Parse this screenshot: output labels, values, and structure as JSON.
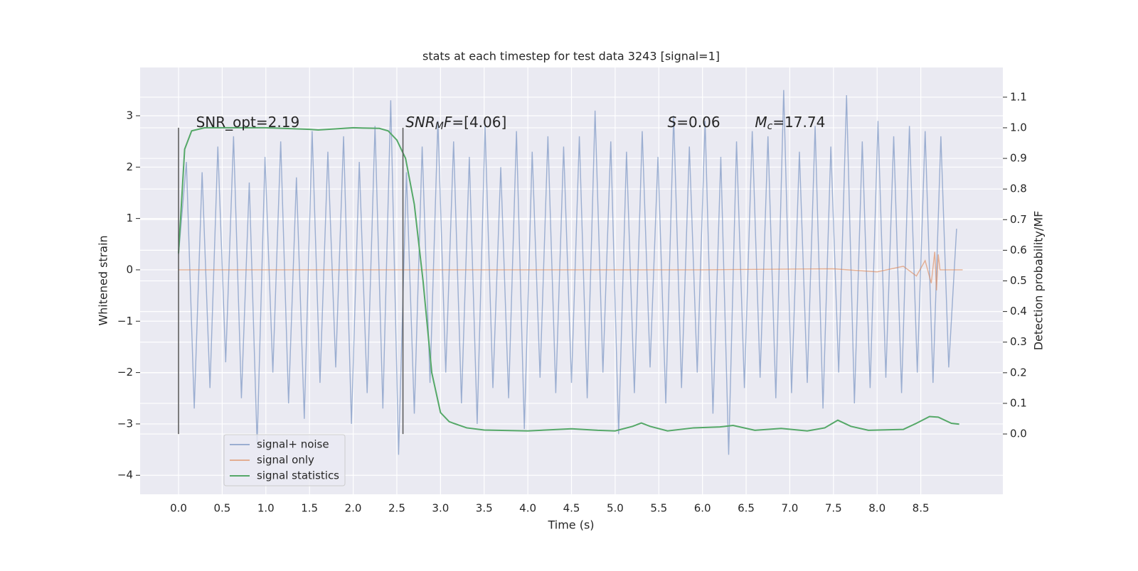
{
  "chart_data": {
    "type": "line",
    "title": "stats at each timestep for test data 3243 [signal=1]",
    "xlabel": "Time (s)",
    "ylabel": "Whitened strain",
    "y2label": "Detection probability/MF",
    "xlim": [
      -0.44,
      9.44
    ],
    "ylim": [
      -4.37,
      3.94
    ],
    "y2lim": [
      -0.197,
      1.197
    ],
    "grid": true,
    "legend": "lower left",
    "xticks": [
      {
        "value": 0,
        "label": "0.0"
      },
      {
        "value": 0.5,
        "label": "0.5"
      },
      {
        "value": 1,
        "label": "1.0"
      },
      {
        "value": 1.5,
        "label": "1.5"
      },
      {
        "value": 2,
        "label": "2.0"
      },
      {
        "value": 2.5,
        "label": "2.5"
      },
      {
        "value": 3,
        "label": "3.0"
      },
      {
        "value": 3.5,
        "label": "3.5"
      },
      {
        "value": 4,
        "label": "4.0"
      },
      {
        "value": 4.5,
        "label": "4.5"
      },
      {
        "value": 5,
        "label": "5.0"
      },
      {
        "value": 5.5,
        "label": "5.5"
      },
      {
        "value": 6,
        "label": "6.0"
      },
      {
        "value": 6.5,
        "label": "6.5"
      },
      {
        "value": 7,
        "label": "7.0"
      },
      {
        "value": 7.5,
        "label": "7.5"
      },
      {
        "value": 8,
        "label": "8.0"
      },
      {
        "value": 8.5,
        "label": "8.5"
      }
    ],
    "yticks": [
      {
        "value": -4,
        "label": "−4"
      },
      {
        "value": -3,
        "label": "−3"
      },
      {
        "value": -2,
        "label": "−2"
      },
      {
        "value": -1,
        "label": "−1"
      },
      0,
      1,
      2,
      3
    ],
    "y2ticks": [
      {
        "value": 0,
        "label": "0.0"
      },
      {
        "value": 0.1,
        "label": "0.1"
      },
      {
        "value": 0.2,
        "label": "0.2"
      },
      {
        "value": 0.3,
        "label": "0.3"
      },
      {
        "value": 0.4,
        "label": "0.4"
      },
      {
        "value": 0.5,
        "label": "0.5"
      },
      {
        "value": 0.6,
        "label": "0.6"
      },
      {
        "value": 0.7,
        "label": "0.7"
      },
      {
        "value": 0.8,
        "label": "0.8"
      },
      {
        "value": 0.9,
        "label": "0.9"
      },
      {
        "value": 1,
        "label": "1.0"
      },
      {
        "value": 1.1,
        "label": "1.1"
      }
    ],
    "series": [
      {
        "name": "signal+ noise",
        "color": "#4c72b0",
        "opacity": 0.5,
        "x": [
          0,
          0.09,
          0.18,
          0.27,
          0.36,
          0.45,
          0.54,
          0.63,
          0.72,
          0.81,
          0.9,
          0.99,
          1.08,
          1.17,
          1.26,
          1.35,
          1.44,
          1.53,
          1.62,
          1.71,
          1.8,
          1.89,
          1.98,
          2.07,
          2.16,
          2.25,
          2.34,
          2.43,
          2.52,
          2.61,
          2.7,
          2.79,
          2.88,
          2.97,
          3.06,
          3.15,
          3.24,
          3.33,
          3.42,
          3.51,
          3.6,
          3.69,
          3.78,
          3.87,
          3.96,
          4.05,
          4.14,
          4.23,
          4.32,
          4.41,
          4.5,
          4.59,
          4.68,
          4.77,
          4.86,
          4.95,
          5.04,
          5.13,
          5.22,
          5.31,
          5.4,
          5.49,
          5.58,
          5.67,
          5.76,
          5.85,
          5.94,
          6.03,
          6.12,
          6.21,
          6.3,
          6.39,
          6.48,
          6.57,
          6.66,
          6.75,
          6.84,
          6.93,
          7.02,
          7.11,
          7.2,
          7.29,
          7.38,
          7.47,
          7.56,
          7.65,
          7.74,
          7.83,
          7.92,
          8.01,
          8.1,
          8.19,
          8.28,
          8.37,
          8.46,
          8.55,
          8.64,
          8.73,
          8.82,
          8.91
        ],
        "values": [
          0.3,
          2.1,
          -2.7,
          1.9,
          -2.3,
          2.4,
          -1.8,
          2.6,
          -2.5,
          1.7,
          -3.4,
          2.2,
          -2.0,
          2.5,
          -2.6,
          1.8,
          -2.9,
          2.7,
          -2.2,
          2.3,
          -1.9,
          2.6,
          -3.0,
          2.1,
          -2.4,
          2.8,
          -2.7,
          3.3,
          -3.6,
          1.9,
          -2.8,
          2.4,
          -2.2,
          2.9,
          -2.0,
          2.5,
          -2.6,
          2.2,
          -3.0,
          2.8,
          -2.3,
          2.0,
          -2.5,
          2.7,
          -3.1,
          2.3,
          -2.1,
          2.6,
          -2.4,
          2.4,
          -2.2,
          2.6,
          -2.5,
          3.1,
          -2.0,
          2.5,
          -3.2,
          2.3,
          -2.4,
          2.7,
          -1.9,
          2.2,
          -2.6,
          3.0,
          -2.3,
          2.4,
          -2.0,
          2.9,
          -2.8,
          2.2,
          -3.6,
          2.5,
          -2.3,
          2.7,
          -2.1,
          2.6,
          -2.5,
          3.5,
          -2.4,
          2.3,
          -2.2,
          2.8,
          -2.7,
          2.4,
          -2.0,
          3.4,
          -2.6,
          2.5,
          -2.3,
          2.9,
          -2.1,
          2.6,
          -2.4,
          2.8,
          -2.0,
          2.7,
          -2.2,
          2.6,
          -1.9,
          0.8
        ]
      },
      {
        "name": "signal only",
        "color": "#dd8452",
        "opacity": 0.6,
        "x": [
          0,
          2,
          4,
          6,
          7.5,
          8.0,
          8.3,
          8.45,
          8.55,
          8.62,
          8.66,
          8.68,
          8.7,
          8.72,
          8.98
        ],
        "values": [
          0,
          0,
          0,
          0,
          0.02,
          -0.04,
          0.07,
          -0.12,
          0.18,
          -0.26,
          0.35,
          -0.4,
          0.3,
          0,
          0
        ]
      },
      {
        "name": "signal statistics",
        "color": "#55a868",
        "opacity": 1,
        "axis": "y2",
        "x": [
          0,
          0.07,
          0.15,
          0.3,
          1.0,
          1.5,
          1.6,
          2.0,
          2.3,
          2.4,
          2.5,
          2.6,
          2.7,
          2.8,
          2.9,
          3.0,
          3.1,
          3.3,
          3.5,
          4.0,
          4.5,
          4.8,
          5.0,
          5.2,
          5.3,
          5.4,
          5.6,
          5.9,
          6.2,
          6.35,
          6.6,
          6.9,
          7.2,
          7.4,
          7.55,
          7.7,
          7.9,
          8.3,
          8.45,
          8.6,
          8.7,
          8.85,
          8.94
        ],
        "values": [
          0.59,
          0.93,
          0.99,
          1.0,
          1.0,
          0.995,
          0.993,
          1.0,
          0.998,
          0.99,
          0.96,
          0.9,
          0.75,
          0.5,
          0.2,
          0.07,
          0.04,
          0.02,
          0.013,
          0.01,
          0.017,
          0.012,
          0.01,
          0.025,
          0.036,
          0.025,
          0.01,
          0.02,
          0.023,
          0.028,
          0.012,
          0.018,
          0.01,
          0.02,
          0.045,
          0.025,
          0.012,
          0.015,
          0.035,
          0.057,
          0.055,
          0.035,
          0.032
        ]
      }
    ],
    "vlines": [
      {
        "x": 0,
        "ymin": 0,
        "ymax": 1,
        "color": "#555555"
      },
      {
        "x": 2.57,
        "ymin": 0,
        "ymax": 1,
        "color": "#555555"
      }
    ],
    "annotations": [
      {
        "x": 0.2,
        "y": 2.86,
        "parts": [
          {
            "text": "SNR_opt=2.19"
          }
        ]
      },
      {
        "x": 2.6,
        "y": 2.86,
        "parts": [
          {
            "text": "SNR",
            "style": "italic"
          },
          {
            "text": "M",
            "style": "sub"
          },
          {
            "text": "F",
            "style": "italic"
          },
          {
            "text": "=[4.06]"
          }
        ]
      },
      {
        "x": 5.6,
        "y": 2.86,
        "parts": [
          {
            "text": "S",
            "style": "italic"
          },
          {
            "text": "=0.06"
          }
        ]
      },
      {
        "x": 6.6,
        "y": 2.86,
        "parts": [
          {
            "text": "M",
            "style": "italic"
          },
          {
            "text": "c",
            "style": "sub"
          },
          {
            "text": "=17.74"
          }
        ]
      }
    ]
  }
}
